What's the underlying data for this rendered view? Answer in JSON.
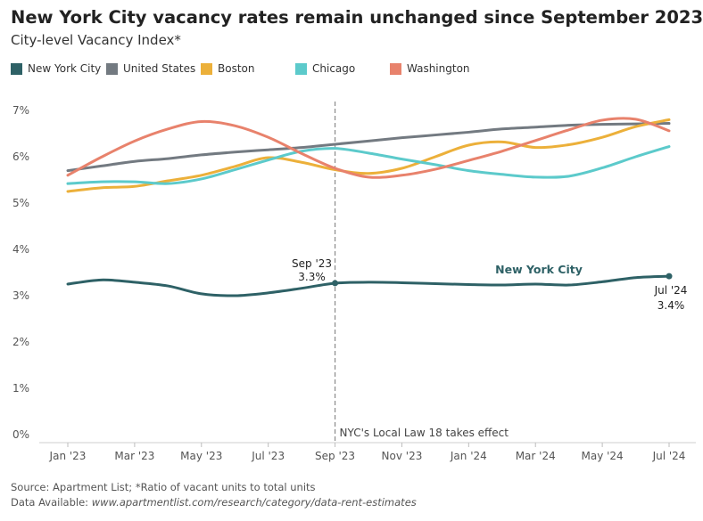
{
  "title": "New York City vacancy rates remain unchanged since September 2023",
  "subtitle": "City-level Vacancy Index*",
  "legend": [
    {
      "label": "New York City",
      "color": "#2e6166"
    },
    {
      "label": "United States",
      "color": "#737a81"
    },
    {
      "label": "Boston",
      "color": "#ecb03a"
    },
    {
      "label": "Chicago",
      "color": "#5ccacb"
    },
    {
      "label": "Washington",
      "color": "#e8826c"
    }
  ],
  "footer": {
    "source": "Source: Apartment List; *Ratio of vacant units to total units",
    "data_prefix": "Data Available: ",
    "data_link": "www.apartmentlist.com/research/category/data-rent-estimates"
  },
  "chart_data": {
    "type": "line",
    "x": [
      "2023-01",
      "2023-02",
      "2023-03",
      "2023-04",
      "2023-05",
      "2023-06",
      "2023-07",
      "2023-08",
      "2023-09",
      "2023-10",
      "2023-11",
      "2023-12",
      "2024-01",
      "2024-02",
      "2024-03",
      "2024-04",
      "2024-05",
      "2024-06",
      "2024-07"
    ],
    "x_tick_labels": [
      "Jan '23",
      "Mar '23",
      "May '23",
      "Jul '23",
      "Sep '23",
      "Nov '23",
      "Jan '24",
      "Mar '24",
      "May '24",
      "Jul '24"
    ],
    "y_tick_labels": [
      "0%",
      "1%",
      "2%",
      "3%",
      "4%",
      "5%",
      "6%",
      "7%"
    ],
    "ylim": [
      0,
      7.2
    ],
    "grid": false,
    "legend_position": "top",
    "series": [
      {
        "name": "United States",
        "color": "#737a81",
        "values": [
          5.7,
          5.8,
          5.9,
          5.96,
          6.04,
          6.1,
          6.15,
          6.2,
          6.27,
          6.34,
          6.41,
          6.47,
          6.53,
          6.6,
          6.64,
          6.68,
          6.7,
          6.71,
          6.72
        ]
      },
      {
        "name": "Boston",
        "color": "#ecb03a",
        "values": [
          5.25,
          5.33,
          5.36,
          5.48,
          5.6,
          5.79,
          5.98,
          5.88,
          5.72,
          5.64,
          5.75,
          6.0,
          6.25,
          6.32,
          6.2,
          6.26,
          6.42,
          6.65,
          6.8
        ]
      },
      {
        "name": "Chicago",
        "color": "#5ccacb",
        "values": [
          5.42,
          5.46,
          5.46,
          5.42,
          5.52,
          5.72,
          5.93,
          6.12,
          6.18,
          6.08,
          5.95,
          5.83,
          5.7,
          5.62,
          5.56,
          5.58,
          5.76,
          6.0,
          6.22
        ]
      },
      {
        "name": "Washington",
        "color": "#e8826c",
        "values": [
          5.6,
          5.99,
          6.34,
          6.6,
          6.76,
          6.67,
          6.42,
          6.07,
          5.75,
          5.56,
          5.6,
          5.73,
          5.92,
          6.12,
          6.35,
          6.58,
          6.79,
          6.81,
          6.56
        ]
      },
      {
        "name": "New York City",
        "color": "#2e6166",
        "values": [
          3.25,
          3.34,
          3.29,
          3.21,
          3.04,
          3.0,
          3.06,
          3.16,
          3.27,
          3.29,
          3.28,
          3.26,
          3.24,
          3.23,
          3.25,
          3.23,
          3.3,
          3.39,
          3.42
        ]
      }
    ],
    "annotations": {
      "nyc_label": "New York City",
      "sep_date": "Sep '23",
      "sep_value": "3.3%",
      "jul_date": "Jul '24",
      "jul_value": "3.4%",
      "law_label": "NYC's Local Law 18 takes effect"
    }
  }
}
